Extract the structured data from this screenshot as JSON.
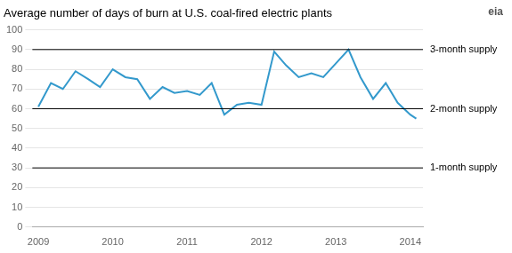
{
  "chart_data": {
    "type": "line",
    "title": "Average number of days of burn at U.S. coal-fired electric plants",
    "logo_text": "eia",
    "color": "#3399cc",
    "x": [
      2009.0,
      2009.17,
      2009.33,
      2009.5,
      2009.67,
      2009.83,
      2010.0,
      2010.17,
      2010.33,
      2010.5,
      2010.67,
      2010.83,
      2011.0,
      2011.17,
      2011.33,
      2011.5,
      2011.67,
      2011.83,
      2012.0,
      2012.17,
      2012.33,
      2012.5,
      2012.67,
      2012.83,
      2013.0,
      2013.17,
      2013.33,
      2013.5,
      2013.67,
      2013.83,
      2014.0,
      2014.08
    ],
    "values": [
      61,
      73,
      70,
      79,
      75,
      71,
      80,
      76,
      75,
      65,
      71,
      68,
      69,
      67,
      73,
      57,
      62,
      63,
      62,
      89,
      82,
      76,
      78,
      76,
      83,
      90,
      76,
      65,
      73,
      63,
      57,
      55
    ],
    "xlim": [
      2008.92,
      2014.17
    ],
    "xticks": [
      2009,
      2010,
      2011,
      2012,
      2013,
      2014
    ],
    "ylim": [
      0,
      100
    ],
    "yticks": [
      0,
      10,
      20,
      30,
      40,
      50,
      60,
      70,
      80,
      90,
      100
    ],
    "grid": "y",
    "annotations": [
      {
        "y": 90,
        "label": "3-month supply",
        "color": "#000000"
      },
      {
        "y": 60,
        "label": "2-month supply",
        "color": "#000000"
      },
      {
        "y": 30,
        "label": "1-month supply",
        "color": "#000000"
      }
    ]
  }
}
